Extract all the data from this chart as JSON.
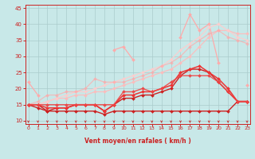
{
  "x": [
    0,
    1,
    2,
    3,
    4,
    5,
    6,
    7,
    8,
    9,
    10,
    11,
    12,
    13,
    14,
    15,
    16,
    17,
    18,
    19,
    20,
    21,
    22,
    23
  ],
  "series": [
    {
      "color": "#ffaaaa",
      "alpha": 1.0,
      "linewidth": 0.9,
      "marker": "D",
      "markersize": 2.0,
      "y": [
        22,
        18,
        null,
        null,
        null,
        null,
        null,
        null,
        null,
        32,
        33,
        29,
        null,
        null,
        null,
        null,
        36,
        43,
        38,
        40,
        28,
        null,
        null,
        21
      ]
    },
    {
      "color": "#ffbbbb",
      "alpha": 0.9,
      "linewidth": 0.9,
      "marker": "D",
      "markersize": 2.0,
      "y": [
        15,
        15,
        16,
        17,
        17,
        18,
        18,
        19,
        19,
        20,
        21,
        22,
        23,
        24,
        25,
        26,
        28,
        30,
        33,
        36,
        38,
        38,
        37,
        37
      ]
    },
    {
      "color": "#ffcccc",
      "alpha": 0.9,
      "linewidth": 0.9,
      "marker": "D",
      "markersize": 2.0,
      "y": [
        15,
        15,
        16,
        17,
        18,
        19,
        19,
        20,
        21,
        22,
        23,
        24,
        25,
        26,
        27,
        29,
        32,
        34,
        36,
        39,
        40,
        38,
        36,
        35
      ]
    },
    {
      "color": "#ffaaaa",
      "alpha": 0.7,
      "linewidth": 0.9,
      "marker": "D",
      "markersize": 2.0,
      "y": [
        15,
        16,
        18,
        18,
        19,
        19,
        20,
        23,
        22,
        22,
        22,
        23,
        24,
        25,
        27,
        28,
        30,
        33,
        35,
        37,
        38,
        36,
        35,
        34
      ]
    },
    {
      "color": "#cc2222",
      "alpha": 1.0,
      "linewidth": 1.0,
      "marker": "D",
      "markersize": 2.0,
      "y": [
        15,
        14,
        13,
        13,
        13,
        13,
        13,
        13,
        12,
        13,
        13,
        13,
        13,
        13,
        13,
        13,
        13,
        13,
        13,
        13,
        13,
        13,
        16,
        16
      ]
    },
    {
      "color": "#cc2222",
      "alpha": 1.0,
      "linewidth": 1.0,
      "marker": "D",
      "markersize": 2.0,
      "y": [
        15,
        15,
        13,
        14,
        14,
        15,
        15,
        15,
        13,
        15,
        17,
        17,
        18,
        18,
        19,
        20,
        24,
        26,
        26,
        25,
        22,
        19,
        16,
        16
      ]
    },
    {
      "color": "#ee3333",
      "alpha": 1.0,
      "linewidth": 1.1,
      "marker": "D",
      "markersize": 2.0,
      "y": [
        15,
        15,
        14,
        14,
        14,
        15,
        15,
        15,
        13,
        15,
        18,
        18,
        19,
        19,
        20,
        21,
        25,
        26,
        27,
        25,
        23,
        20,
        16,
        16
      ]
    },
    {
      "color": "#ee4444",
      "alpha": 0.9,
      "linewidth": 1.0,
      "marker": "D",
      "markersize": 2.0,
      "y": [
        15,
        15,
        15,
        15,
        15,
        15,
        15,
        15,
        15,
        15,
        19,
        19,
        20,
        19,
        20,
        22,
        24,
        24,
        24,
        24,
        22,
        19,
        16,
        16
      ]
    }
  ],
  "xlim": [
    -0.3,
    23.3
  ],
  "ylim": [
    9,
    46
  ],
  "yticks": [
    10,
    15,
    20,
    25,
    30,
    35,
    40,
    45
  ],
  "xticks": [
    0,
    1,
    2,
    3,
    4,
    5,
    6,
    7,
    8,
    9,
    10,
    11,
    12,
    13,
    14,
    15,
    16,
    17,
    18,
    19,
    20,
    21,
    22,
    23
  ],
  "xlabel": "Vent moyen/en rafales ( km/h )",
  "background_color": "#c8e8e8",
  "grid_color": "#aacccc",
  "tick_color": "#cc2222",
  "label_color": "#cc2222",
  "arrow_color": "#cc2222",
  "figsize": [
    3.2,
    2.0
  ],
  "dpi": 100
}
